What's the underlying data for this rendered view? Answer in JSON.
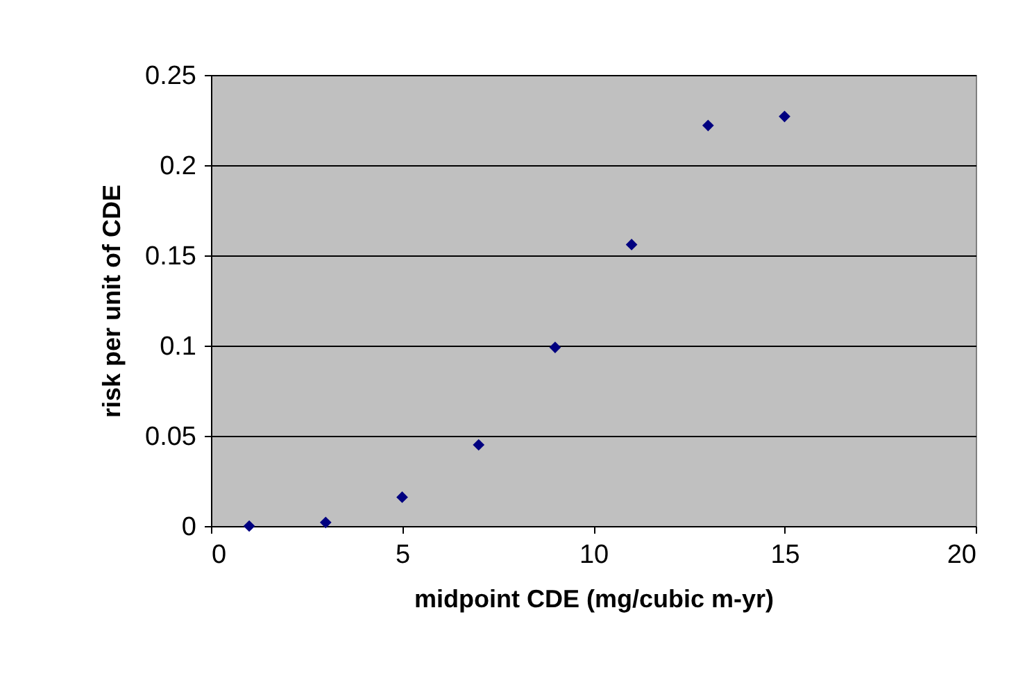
{
  "chart_data": {
    "type": "scatter",
    "xlabel": "midpoint CDE (mg/cubic m-yr)",
    "ylabel": "risk per unit of CDE",
    "x": [
      1,
      3,
      5,
      7,
      9,
      11,
      13,
      15
    ],
    "series": [
      {
        "color": "#000080",
        "values": [
          0,
          0.002,
          0.016,
          0.045,
          0.099,
          0.156,
          0.222,
          0.227
        ]
      }
    ],
    "marker": "diamond",
    "xlim": [
      0,
      20
    ],
    "xticks": [
      0,
      5,
      10,
      15,
      20
    ],
    "ylim": [
      0,
      0.25
    ],
    "yticks": [
      0,
      0.05,
      0.1,
      0.15,
      0.2,
      0.25
    ],
    "grid": "y",
    "legend": false
  }
}
